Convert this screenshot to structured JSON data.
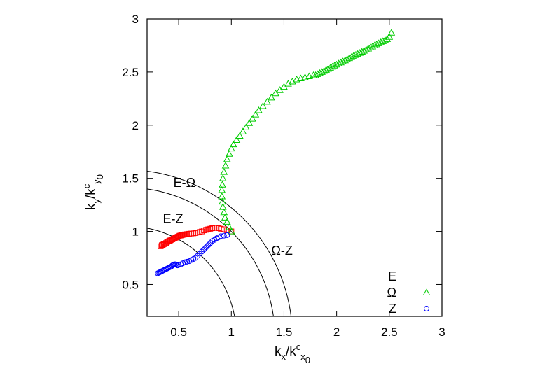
{
  "chart_data": {
    "type": "scatter",
    "xlabel": {
      "base": "k",
      "sub": "x",
      "sep": "/k",
      "sup2": "c",
      "sub2": "x",
      "subsub2": "0"
    },
    "ylabel": {
      "base": "k",
      "sub": "y",
      "sep": "/k",
      "sup2": "c",
      "sub2": "y",
      "subsub2": "0"
    },
    "xlim": [
      0.2,
      3
    ],
    "ylim": [
      0.2,
      3
    ],
    "xticks": [
      "0.5",
      "1",
      "1.5",
      "2",
      "2.5",
      "3"
    ],
    "yticks": [
      "0.5",
      "1",
      "1.5",
      "2",
      "2.5",
      "3"
    ],
    "legend_position": "bottom-right",
    "series": [
      {
        "name": "E",
        "marker": "square",
        "color": "#ff0000",
        "x": [
          0.33,
          0.34,
          0.35,
          0.36,
          0.37,
          0.38,
          0.39,
          0.4,
          0.41,
          0.42,
          0.43,
          0.44,
          0.45,
          0.46,
          0.47,
          0.48,
          0.49,
          0.5,
          0.51,
          0.52,
          0.53,
          0.54,
          0.55,
          0.56,
          0.58,
          0.6,
          0.62,
          0.64,
          0.66,
          0.68,
          0.7,
          0.72,
          0.74,
          0.76,
          0.78,
          0.8,
          0.82,
          0.84,
          0.86,
          0.88,
          0.9,
          0.93,
          0.96,
          1.0
        ],
        "y": [
          0.86,
          0.87,
          0.875,
          0.88,
          0.885,
          0.89,
          0.9,
          0.905,
          0.91,
          0.915,
          0.92,
          0.925,
          0.93,
          0.935,
          0.94,
          0.945,
          0.95,
          0.955,
          0.96,
          0.962,
          0.965,
          0.968,
          0.97,
          0.972,
          0.975,
          0.978,
          0.98,
          0.982,
          0.985,
          0.99,
          0.995,
          1.0,
          1.01,
          1.015,
          1.02,
          1.025,
          1.03,
          1.033,
          1.035,
          1.03,
          1.025,
          1.02,
          1.01,
          1.0
        ]
      },
      {
        "name": "Ω",
        "marker": "triangle",
        "color": "#00cc00",
        "x": [
          1.0,
          0.98,
          0.96,
          0.94,
          0.93,
          0.92,
          0.915,
          0.91,
          0.91,
          0.915,
          0.92,
          0.93,
          0.945,
          0.96,
          0.98,
          1.0,
          1.02,
          1.05,
          1.08,
          1.11,
          1.14,
          1.17,
          1.2,
          1.23,
          1.26,
          1.3,
          1.34,
          1.38,
          1.42,
          1.46,
          1.5,
          1.54,
          1.58,
          1.62,
          1.66,
          1.7,
          1.74,
          1.78,
          1.8,
          1.82,
          1.84,
          1.86,
          1.88,
          1.9,
          1.92,
          1.94,
          1.96,
          1.98,
          2.0,
          2.02,
          2.04,
          2.06,
          2.08,
          2.1,
          2.12,
          2.14,
          2.16,
          2.18,
          2.2,
          2.22,
          2.24,
          2.26,
          2.28,
          2.3,
          2.32,
          2.34,
          2.36,
          2.38,
          2.4,
          2.42,
          2.44,
          2.46,
          2.48,
          2.5,
          2.52
        ],
        "y": [
          1.0,
          1.04,
          1.09,
          1.13,
          1.18,
          1.23,
          1.28,
          1.33,
          1.39,
          1.44,
          1.5,
          1.56,
          1.62,
          1.68,
          1.73,
          1.78,
          1.82,
          1.86,
          1.9,
          1.94,
          1.98,
          2.02,
          2.06,
          2.1,
          2.14,
          2.18,
          2.22,
          2.26,
          2.3,
          2.33,
          2.36,
          2.39,
          2.41,
          2.43,
          2.44,
          2.45,
          2.46,
          2.47,
          2.47,
          2.48,
          2.49,
          2.5,
          2.51,
          2.52,
          2.53,
          2.54,
          2.55,
          2.56,
          2.57,
          2.58,
          2.59,
          2.6,
          2.61,
          2.62,
          2.63,
          2.64,
          2.65,
          2.66,
          2.67,
          2.68,
          2.69,
          2.7,
          2.71,
          2.72,
          2.73,
          2.74,
          2.75,
          2.76,
          2.77,
          2.78,
          2.79,
          2.8,
          2.81,
          2.83,
          2.87
        ]
      },
      {
        "name": "Z",
        "marker": "circle",
        "color": "#0000ff",
        "x": [
          0.3,
          0.31,
          0.32,
          0.33,
          0.34,
          0.35,
          0.36,
          0.37,
          0.38,
          0.39,
          0.4,
          0.41,
          0.42,
          0.43,
          0.44,
          0.45,
          0.46,
          0.47,
          0.48,
          0.49,
          0.5,
          0.52,
          0.54,
          0.56,
          0.58,
          0.6,
          0.62,
          0.64,
          0.66,
          0.68,
          0.7,
          0.72,
          0.74,
          0.76,
          0.78,
          0.8,
          0.82,
          0.84,
          0.86,
          0.88,
          0.9,
          0.93,
          0.96
        ],
        "y": [
          0.605,
          0.61,
          0.615,
          0.62,
          0.625,
          0.63,
          0.635,
          0.64,
          0.645,
          0.65,
          0.655,
          0.66,
          0.665,
          0.67,
          0.68,
          0.685,
          0.69,
          0.69,
          0.685,
          0.68,
          0.685,
          0.69,
          0.7,
          0.71,
          0.715,
          0.72,
          0.73,
          0.74,
          0.75,
          0.77,
          0.79,
          0.81,
          0.83,
          0.85,
          0.87,
          0.89,
          0.91,
          0.92,
          0.935,
          0.945,
          0.955,
          0.96,
          0.965
        ]
      }
    ],
    "curves": [
      {
        "label": "E-Ω",
        "type": "circle",
        "radius": 1.414
      },
      {
        "label": "Ω-Z",
        "type": "ellipse",
        "rx": 1.58,
        "ry": 1.58
      },
      {
        "label": "E-Z",
        "type": "circle",
        "radius": 1.05
      }
    ],
    "annotations": [
      "E-Ω",
      "E-Z",
      "Ω-Z"
    ]
  }
}
